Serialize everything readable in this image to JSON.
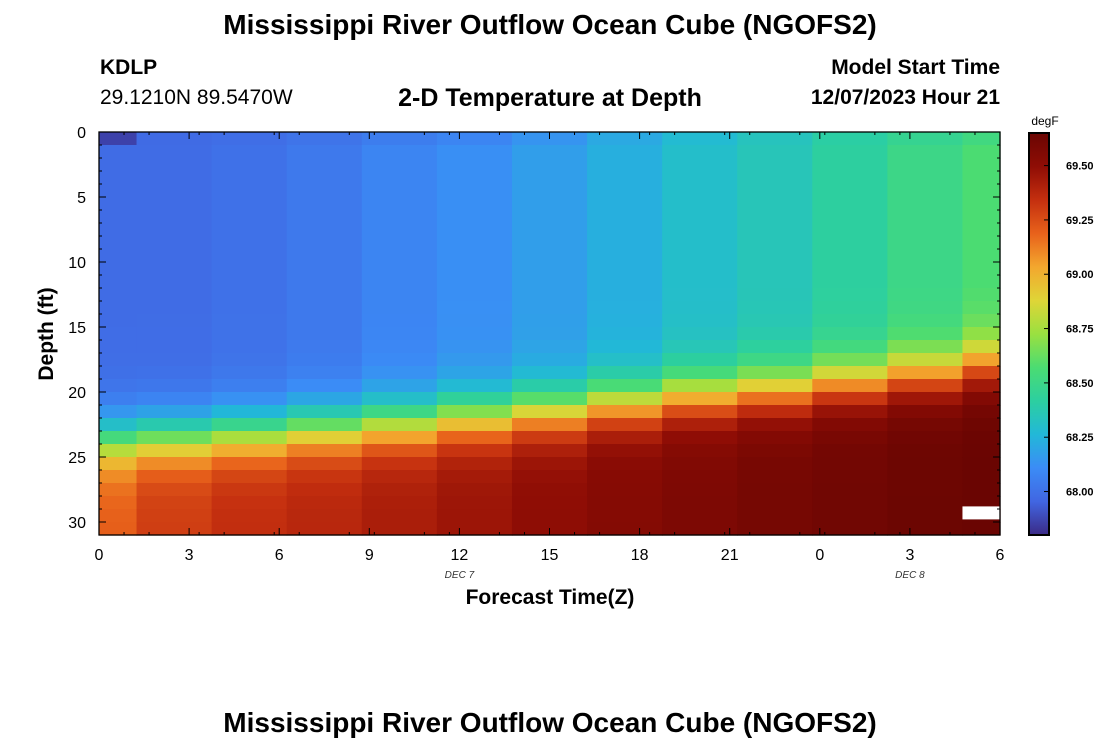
{
  "header": {
    "title": "Mississippi River Outflow Ocean Cube (NGOFS2)",
    "station_id": "KDLP",
    "station_coords": "29.1210N  89.5470W",
    "plot_title": "2-D Temperature at Depth",
    "model_start_label": "Model Start Time",
    "model_start_value": "12/07/2023 Hour 21"
  },
  "footer": {
    "title": "Mississippi River Outflow Ocean Cube (NGOFS2)"
  },
  "chart_data": {
    "type": "heatmap",
    "title": "2-D Temperature at Depth",
    "xlabel": "Forecast Time(Z)",
    "ylabel": "Depth (ft)",
    "x_tick_labels": [
      "0",
      "3",
      "6",
      "9",
      "12",
      "15",
      "18",
      "21",
      "0",
      "3",
      "6"
    ],
    "x_date_labels": [
      {
        "label": "DEC 7",
        "at_tick": 4
      },
      {
        "label": "DEC 8",
        "at_tick": 9
      }
    ],
    "x_range_hours": [
      0,
      36
    ],
    "y_range_ft": [
      0,
      31
    ],
    "y_inverted": true,
    "y_ticks": [
      0,
      5,
      10,
      15,
      20,
      25,
      30
    ],
    "colorbar": {
      "unit": "degF",
      "min": 67.8,
      "max": 69.65,
      "ticks": [
        68.0,
        68.25,
        68.5,
        68.75,
        69.0,
        69.25,
        69.5
      ],
      "tick_labels": [
        "68.00",
        "68.25",
        "68.50",
        "68.75",
        "69.00",
        "69.25",
        "69.50"
      ],
      "colors": [
        "#3b2a86",
        "#4166e2",
        "#3b8cf6",
        "#22b8d8",
        "#2ccfa0",
        "#4bdc72",
        "#9ae040",
        "#dfd537",
        "#f3a72e",
        "#e8621b",
        "#c42f0f",
        "#8f0d05",
        "#6a0502"
      ]
    },
    "columns": [
      {
        "hour": 0.0,
        "surf": 67.8,
        "mid": 67.98,
        "thermo": 21.5,
        "bottom": 69.2
      },
      {
        "hour": 1.5,
        "surf": 67.97,
        "mid": 67.98,
        "thermo": 21.3,
        "bottom": 69.3
      },
      {
        "hour": 4.5,
        "surf": 67.98,
        "mid": 68.0,
        "thermo": 21.0,
        "bottom": 69.35
      },
      {
        "hour": 7.5,
        "surf": 68.0,
        "mid": 68.03,
        "thermo": 20.6,
        "bottom": 69.38
      },
      {
        "hour": 10.5,
        "surf": 68.03,
        "mid": 68.08,
        "thermo": 20.2,
        "bottom": 69.42
      },
      {
        "hour": 13.5,
        "surf": 68.06,
        "mid": 68.12,
        "thermo": 19.7,
        "bottom": 69.46
      },
      {
        "hour": 16.5,
        "surf": 68.12,
        "mid": 68.17,
        "thermo": 19.2,
        "bottom": 69.5
      },
      {
        "hour": 19.5,
        "surf": 68.2,
        "mid": 68.23,
        "thermo": 18.6,
        "bottom": 69.54
      },
      {
        "hour": 22.5,
        "surf": 68.27,
        "mid": 68.3,
        "thermo": 18.0,
        "bottom": 69.57
      },
      {
        "hour": 25.5,
        "surf": 68.33,
        "mid": 68.35,
        "thermo": 17.6,
        "bottom": 69.6
      },
      {
        "hour": 28.5,
        "surf": 68.4,
        "mid": 68.42,
        "thermo": 17.0,
        "bottom": 69.62
      },
      {
        "hour": 31.5,
        "surf": 68.45,
        "mid": 68.5,
        "thermo": 16.4,
        "bottom": 69.64
      },
      {
        "hour": 34.5,
        "surf": 68.5,
        "mid": 68.57,
        "thermo": 15.6,
        "bottom": 69.65
      }
    ],
    "missing_cell": {
      "hour_from": 34.5,
      "hour_to": 36,
      "depth_from": 28.8,
      "depth_to": 29.8
    }
  }
}
